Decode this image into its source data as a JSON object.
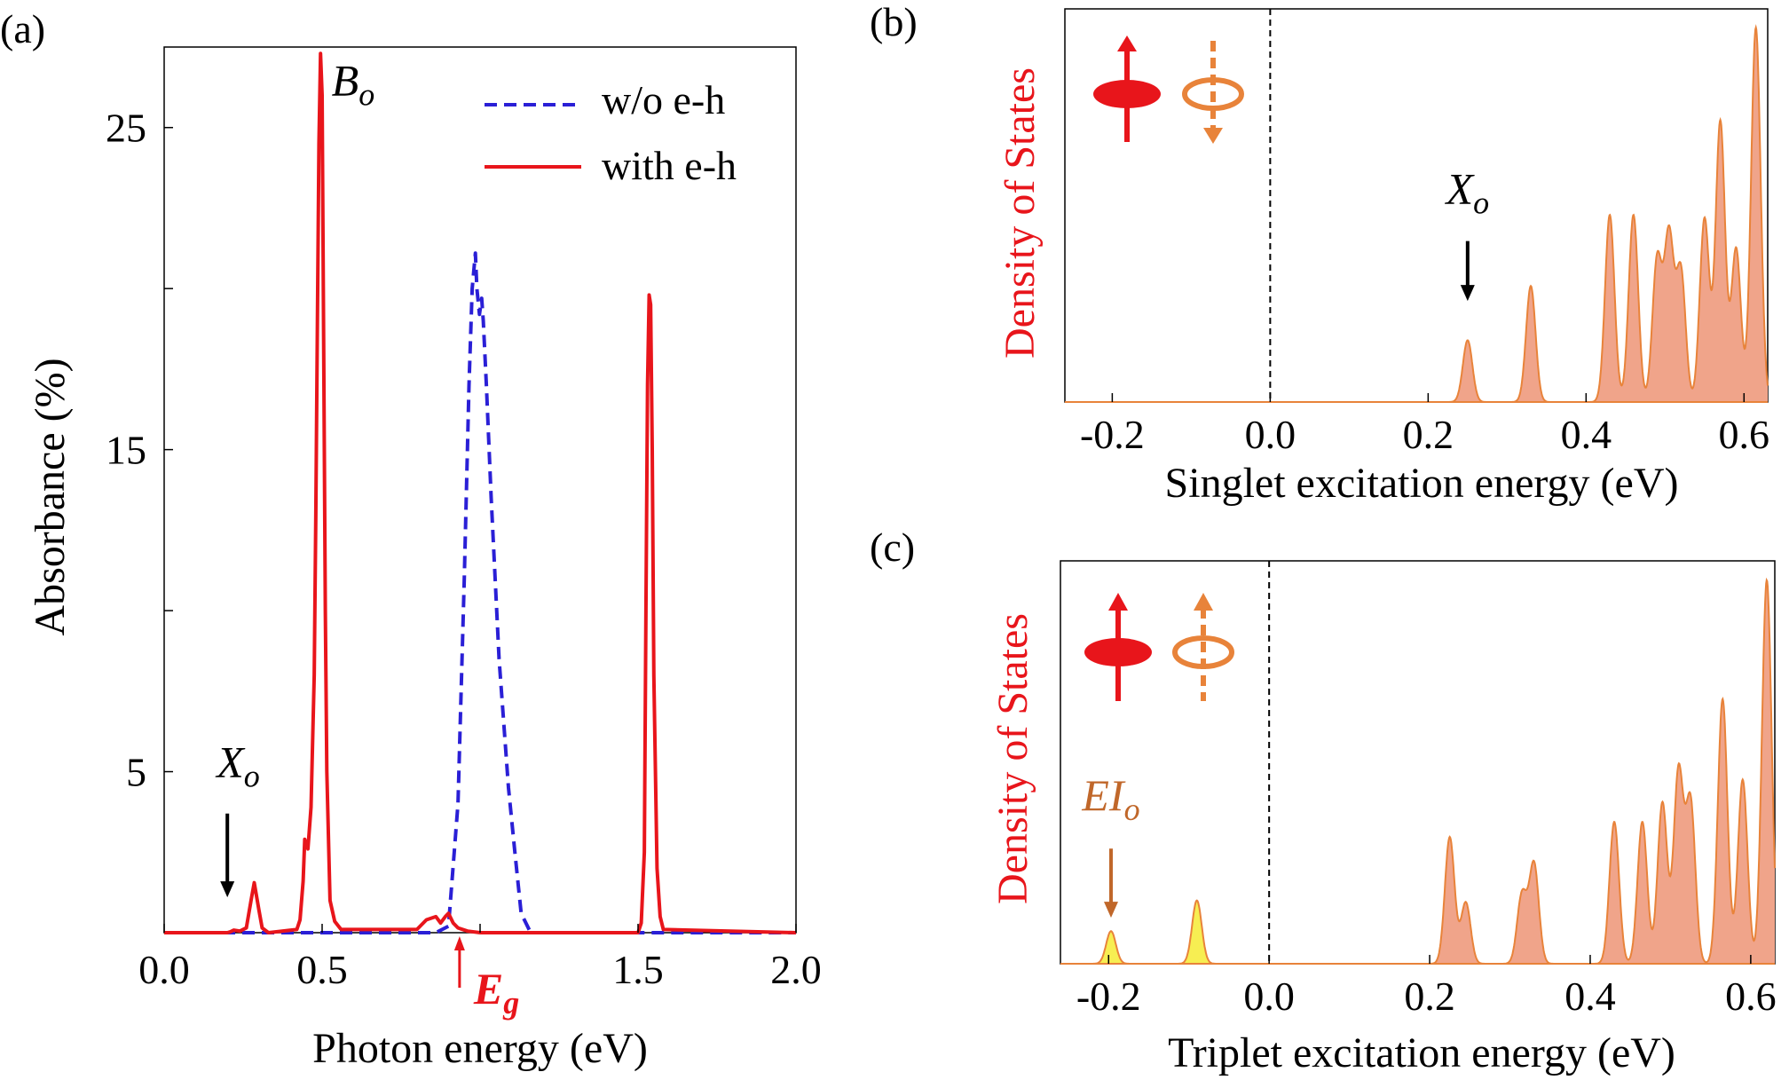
{
  "panels": {
    "a": {
      "label": "(a)"
    },
    "b": {
      "label": "(b)"
    },
    "c": {
      "label": "(c)"
    }
  },
  "colors": {
    "red": "#e8151b",
    "blue": "#2a1fd6",
    "orange": "#e8833a",
    "fill_orange": "#f0a48a",
    "yellow": "#f7ee52",
    "brown": "#c0672a",
    "black": "#000000"
  },
  "chart_data": [
    {
      "id": "a",
      "type": "line",
      "xlabel": "Photon energy (eV)",
      "ylabel": "Absorbance (%)",
      "xlim": [
        0.0,
        2.0
      ],
      "ylim": [
        0.0,
        27.5
      ],
      "xticks": [
        "0.0",
        "0.5",
        "1.5",
        "2.0"
      ],
      "xtick_values": [
        0.0,
        0.5,
        1.5,
        2.0
      ],
      "yticks": [
        "5",
        "15",
        "25"
      ],
      "ytick_values": [
        5,
        15,
        25
      ],
      "minor_yticks": [
        10,
        20
      ],
      "minor_xticks": [
        1.0
      ],
      "legend_position": "top-right",
      "series": [
        {
          "name": "w/o e-h",
          "style": "dashed",
          "color": "#2a1fd6",
          "x": [
            0.0,
            0.86,
            0.9,
            0.93,
            0.95,
            0.965,
            0.975,
            0.985,
            0.99,
            0.998,
            1.005,
            1.01,
            1.02,
            1.035,
            1.06,
            1.09,
            1.11,
            1.13,
            1.16,
            2.0
          ],
          "y": [
            0,
            0,
            0.2,
            4.0,
            11.0,
            17.0,
            20.0,
            21.1,
            20.0,
            19.2,
            19.7,
            19.0,
            17.0,
            13.5,
            8.5,
            4.5,
            2.5,
            0.6,
            0,
            0
          ]
        },
        {
          "name": "with e-h",
          "style": "solid",
          "color": "#e8151b",
          "x": [
            0.0,
            0.2,
            0.21,
            0.22,
            0.24,
            0.26,
            0.275,
            0.285,
            0.3,
            0.31,
            0.33,
            0.42,
            0.43,
            0.44,
            0.445,
            0.455,
            0.465,
            0.475,
            0.48,
            0.485,
            0.49,
            0.495,
            0.5,
            0.505,
            0.51,
            0.515,
            0.525,
            0.54,
            0.56,
            0.8,
            0.83,
            0.86,
            0.875,
            0.89,
            0.9,
            0.915,
            0.93,
            0.96,
            1.0,
            1.5,
            1.51,
            1.52,
            1.525,
            1.53,
            1.535,
            1.54,
            1.545,
            1.55,
            1.56,
            1.57,
            1.58,
            2.0
          ],
          "y": [
            0,
            0,
            0.03,
            0.08,
            0.05,
            0.15,
            1.0,
            1.55,
            0.7,
            0.15,
            0,
            0.1,
            0.4,
            1.6,
            2.9,
            2.6,
            3.9,
            8.0,
            13.0,
            19.0,
            24.5,
            27.3,
            26.0,
            18.0,
            10.0,
            5.0,
            1.0,
            0.35,
            0.1,
            0.1,
            0.4,
            0.5,
            0.3,
            0.5,
            0.6,
            0.3,
            0.15,
            0.05,
            0,
            0,
            0.3,
            2.5,
            10.0,
            17.0,
            19.8,
            19.5,
            15.0,
            8.0,
            2.0,
            0.5,
            0.1,
            0
          ]
        }
      ],
      "annotations": [
        {
          "text": "B",
          "sub": "o",
          "x": 0.53,
          "y": 26.0
        },
        {
          "text": "X",
          "sub": "o",
          "x": 0.2,
          "y": 4.5,
          "arrow_to": [
            0.2,
            1.1
          ],
          "arrow_from": [
            0.2,
            3.7
          ]
        },
        {
          "text": "E",
          "sub": "g",
          "x": 0.98,
          "y": -2.2,
          "arrow_at_x": 0.935,
          "color": "#e8151b"
        }
      ]
    },
    {
      "id": "b",
      "type": "area",
      "xlabel": "Singlet excitation energy (eV)",
      "ylabel": "Density of States",
      "xlim": [
        -0.26,
        0.63
      ],
      "ylim": [
        0,
        1.05
      ],
      "xticks": [
        "-0.2",
        "0.0",
        "0.2",
        "0.4",
        "0.6"
      ],
      "xtick_values": [
        -0.2,
        0.0,
        0.2,
        0.4,
        0.6
      ],
      "zero_line": 0.0,
      "peak_width": 0.006,
      "peaks": [
        {
          "x": 0.25,
          "h": 0.165
        },
        {
          "x": 0.33,
          "h": 0.31
        },
        {
          "x": 0.43,
          "h": 0.5
        },
        {
          "x": 0.46,
          "h": 0.5
        },
        {
          "x": 0.49,
          "h": 0.38
        },
        {
          "x": 0.505,
          "h": 0.44
        },
        {
          "x": 0.52,
          "h": 0.35
        },
        {
          "x": 0.55,
          "h": 0.49
        },
        {
          "x": 0.57,
          "h": 0.75
        },
        {
          "x": 0.59,
          "h": 0.41
        },
        {
          "x": 0.615,
          "h": 1.0
        }
      ],
      "fill_color": "#f0a48a",
      "line_color": "#e8833a",
      "annotations": [
        {
          "text": "X",
          "sub": "o",
          "x": 0.25,
          "y": 0.53,
          "arrow_from": [
            0.25,
            0.43
          ],
          "arrow_to": [
            0.25,
            0.27
          ]
        }
      ],
      "spin_icon": "singlet-spin-icon"
    },
    {
      "id": "c",
      "type": "area",
      "xlabel": "Triplet excitation energy (eV)",
      "ylabel": "Density of States",
      "xlim": [
        -0.26,
        0.63
      ],
      "ylim": [
        0,
        1.05
      ],
      "xticks": [
        "-0.2",
        "0.0",
        "0.2",
        "0.4",
        "0.6"
      ],
      "xtick_values": [
        -0.2,
        0.0,
        0.2,
        0.4,
        0.6
      ],
      "zero_line": 0.0,
      "peak_width": 0.006,
      "peaks": [
        {
          "x": -0.197,
          "h": 0.085,
          "color": "yellow"
        },
        {
          "x": -0.09,
          "h": 0.165,
          "color": "yellow"
        },
        {
          "x": 0.225,
          "h": 0.33
        },
        {
          "x": 0.245,
          "h": 0.16
        },
        {
          "x": 0.315,
          "h": 0.18
        },
        {
          "x": 0.33,
          "h": 0.26
        },
        {
          "x": 0.43,
          "h": 0.37
        },
        {
          "x": 0.465,
          "h": 0.37
        },
        {
          "x": 0.49,
          "h": 0.42
        },
        {
          "x": 0.51,
          "h": 0.5
        },
        {
          "x": 0.525,
          "h": 0.42
        },
        {
          "x": 0.565,
          "h": 0.69
        },
        {
          "x": 0.59,
          "h": 0.48
        },
        {
          "x": 0.62,
          "h": 1.0
        }
      ],
      "fill_color": "#f0a48a",
      "line_color": "#e8833a",
      "annotations": [
        {
          "text": "EI",
          "sub": "o",
          "x": -0.197,
          "y": 0.4,
          "arrow_from": [
            -0.197,
            0.3
          ],
          "arrow_to": [
            -0.197,
            0.12
          ],
          "color": "#c0672a"
        }
      ],
      "spin_icon": "triplet-spin-icon"
    }
  ]
}
